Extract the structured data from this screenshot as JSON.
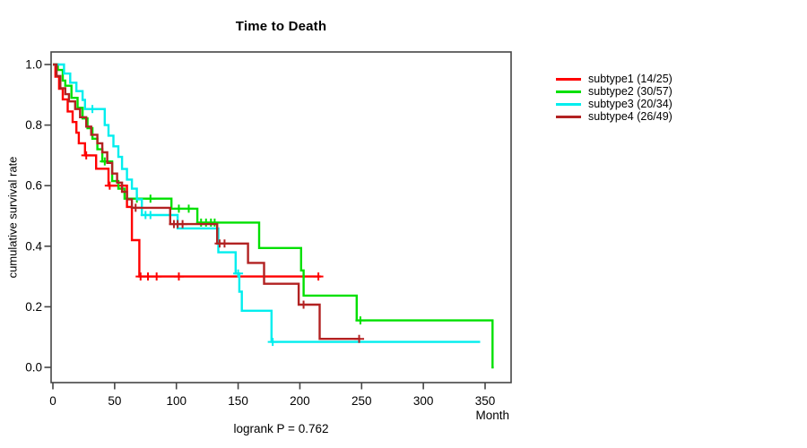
{
  "chart_data": {
    "type": "line",
    "variant": "kaplan_meier_step_survival",
    "title": "Time to Death",
    "footnote": "logrank P = 0.762",
    "grid": false,
    "legend": {
      "position": "right-outside"
    },
    "x_axis": {
      "label": "Month",
      "ticks": [
        "0",
        "50",
        "100",
        "150",
        "200",
        "250",
        "300",
        "350"
      ],
      "range": [
        0,
        372
      ]
    },
    "y_axis": {
      "label": "cumulative survival rate",
      "ticks": [
        "0.0",
        "0.2",
        "0.4",
        "0.6",
        "0.8",
        "1.0"
      ],
      "range": [
        0,
        1
      ]
    },
    "series": [
      {
        "name": "subtype1",
        "label": "subtype1 (14/25)",
        "color": "#ff0000",
        "steps": [
          [
            0,
            1.0
          ],
          [
            2,
            0.96
          ],
          [
            5,
            0.92
          ],
          [
            8,
            0.885
          ],
          [
            12,
            0.845
          ],
          [
            16,
            0.81
          ],
          [
            19,
            0.775
          ],
          [
            21,
            0.74
          ],
          [
            26,
            0.7
          ],
          [
            35,
            0.656
          ],
          [
            45,
            0.6
          ],
          [
            60,
            0.53
          ],
          [
            64,
            0.42
          ],
          [
            70,
            0.3
          ]
        ],
        "end": 217,
        "censors": [
          [
            27,
            0.7
          ],
          [
            46,
            0.6
          ],
          [
            71,
            0.3
          ],
          [
            77,
            0.3
          ],
          [
            84,
            0.3
          ],
          [
            102,
            0.3
          ],
          [
            215,
            0.3
          ]
        ]
      },
      {
        "name": "subtype2",
        "label": "subtype2 (30/57)",
        "color": "#00e000",
        "steps": [
          [
            0,
            1.0
          ],
          [
            4,
            0.982
          ],
          [
            8,
            0.947
          ],
          [
            10,
            0.93
          ],
          [
            15,
            0.89
          ],
          [
            20,
            0.857
          ],
          [
            24,
            0.822
          ],
          [
            28,
            0.79
          ],
          [
            32,
            0.755
          ],
          [
            36,
            0.72
          ],
          [
            40,
            0.68
          ],
          [
            48,
            0.615
          ],
          [
            53,
            0.59
          ],
          [
            58,
            0.557
          ],
          [
            96,
            0.524
          ],
          [
            117,
            0.478
          ],
          [
            167,
            0.394
          ],
          [
            201,
            0.32
          ],
          [
            203,
            0.237
          ],
          [
            246,
            0.155
          ],
          [
            356,
            0.0
          ]
        ],
        "end": 357,
        "censors": [
          [
            42,
            0.68
          ],
          [
            68,
            0.557
          ],
          [
            79,
            0.557
          ],
          [
            102,
            0.524
          ],
          [
            110,
            0.524
          ],
          [
            120,
            0.478
          ],
          [
            124,
            0.478
          ],
          [
            128,
            0.478
          ],
          [
            131,
            0.478
          ],
          [
            249,
            0.155
          ]
        ]
      },
      {
        "name": "subtype3",
        "label": "subtype3 (20/34)",
        "color": "#00eeee",
        "steps": [
          [
            0,
            1.0
          ],
          [
            9,
            0.97
          ],
          [
            14,
            0.94
          ],
          [
            19,
            0.912
          ],
          [
            24,
            0.883
          ],
          [
            26,
            0.853
          ],
          [
            42,
            0.8
          ],
          [
            45,
            0.765
          ],
          [
            49,
            0.73
          ],
          [
            53,
            0.695
          ],
          [
            56,
            0.655
          ],
          [
            60,
            0.62
          ],
          [
            64,
            0.59
          ],
          [
            68,
            0.555
          ],
          [
            72,
            0.503
          ],
          [
            101,
            0.459
          ],
          [
            134,
            0.38
          ],
          [
            148,
            0.31
          ],
          [
            151,
            0.25
          ],
          [
            153,
            0.187
          ],
          [
            177,
            0.084
          ]
        ],
        "end": 346,
        "censors": [
          [
            32,
            0.853
          ],
          [
            75,
            0.503
          ],
          [
            79,
            0.503
          ],
          [
            150,
            0.31
          ],
          [
            178,
            0.084
          ]
        ]
      },
      {
        "name": "subtype4",
        "label": "subtype4 (26/49)",
        "color": "#b22222",
        "steps": [
          [
            0,
            1.0
          ],
          [
            3,
            0.962
          ],
          [
            6,
            0.922
          ],
          [
            10,
            0.902
          ],
          [
            13,
            0.878
          ],
          [
            18,
            0.853
          ],
          [
            22,
            0.826
          ],
          [
            27,
            0.795
          ],
          [
            31,
            0.768
          ],
          [
            36,
            0.74
          ],
          [
            40,
            0.71
          ],
          [
            44,
            0.675
          ],
          [
            48,
            0.64
          ],
          [
            52,
            0.61
          ],
          [
            56,
            0.58
          ],
          [
            60,
            0.555
          ],
          [
            64,
            0.527
          ],
          [
            95,
            0.473
          ],
          [
            133,
            0.409
          ],
          [
            158,
            0.345
          ],
          [
            171,
            0.276
          ],
          [
            199,
            0.207
          ],
          [
            216,
            0.094
          ]
        ],
        "end": 249,
        "censors": [
          [
            67,
            0.527
          ],
          [
            98,
            0.473
          ],
          [
            101,
            0.473
          ],
          [
            105,
            0.473
          ],
          [
            135,
            0.409
          ],
          [
            139,
            0.409
          ],
          [
            203,
            0.207
          ],
          [
            248,
            0.094
          ]
        ]
      }
    ]
  }
}
